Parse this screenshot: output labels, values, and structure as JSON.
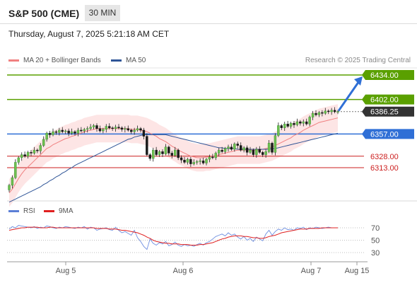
{
  "header": {
    "title": "S&P 500 (CME)",
    "timeframe": "30 MIN",
    "datetime": "Thursday, August 7, 2025 5:21:18 AM CET",
    "credit": "Research © 2025 Trading Central"
  },
  "legend": [
    {
      "label": "MA 20 + Bollinger Bands",
      "color": "#f08080"
    },
    {
      "label": "MA 50",
      "color": "#2f5597"
    }
  ],
  "rsi_legend": [
    {
      "label": "RSI",
      "color": "#5b7fd6"
    },
    {
      "label": "9MA",
      "color": "#e02020"
    }
  ],
  "chart_data": {
    "type": "candlestick",
    "x_ticks": [
      "Aug 5",
      "Aug 6",
      "Aug 7",
      "Aug 15"
    ],
    "price_levels": [
      {
        "value": 6434.0,
        "label": "6434.00",
        "color": "#5aa000",
        "kind": "target"
      },
      {
        "value": 6402.0,
        "label": "6402.00",
        "color": "#5aa000",
        "kind": "resistance"
      },
      {
        "value": 6386.25,
        "label": "6386.25",
        "color": "#333333",
        "kind": "last"
      },
      {
        "value": 6357.0,
        "label": "6357.00",
        "color": "#2f6fd6",
        "kind": "pivot"
      },
      {
        "value": 6328.0,
        "label": "6328.00",
        "color": "#cc1f1f",
        "kind": "support"
      },
      {
        "value": 6313.0,
        "label": "6313.00",
        "color": "#cc1f1f",
        "kind": "support"
      }
    ],
    "close": [
      6290,
      6300,
      6320,
      6326,
      6330,
      6328,
      6333,
      6332,
      6336,
      6335,
      6342,
      6350,
      6358,
      6356,
      6360,
      6359,
      6362,
      6360,
      6361,
      6358,
      6360,
      6358,
      6362,
      6361,
      6363,
      6364,
      6366,
      6368,
      6364,
      6361,
      6363,
      6367,
      6365,
      6364,
      6366,
      6365,
      6363,
      6364,
      6362,
      6360,
      6362,
      6364,
      6362,
      6354,
      6330,
      6325,
      6336,
      6330,
      6334,
      6331,
      6340,
      6332,
      6329,
      6336,
      6326,
      6323,
      6320,
      6324,
      6318,
      6320,
      6321,
      6322,
      6319,
      6324,
      6327,
      6326,
      6332,
      6336,
      6334,
      6338,
      6340,
      6337,
      6344,
      6342,
      6336,
      6339,
      6333,
      6336,
      6330,
      6337,
      6333,
      6330,
      6334,
      6345,
      6333,
      6355,
      6368,
      6365,
      6370,
      6367,
      6371,
      6369,
      6373,
      6371,
      6373,
      6370,
      6379,
      6384,
      6382,
      6385,
      6384,
      6387,
      6386,
      6388,
      6386,
      6386.25
    ],
    "ma20": [
      6280,
      6285,
      6292,
      6299,
      6305,
      6310,
      6314,
      6318,
      6322,
      6326,
      6330,
      6334,
      6338,
      6340,
      6343,
      6345,
      6347,
      6349,
      6351,
      6352,
      6354,
      6355,
      6357,
      6358,
      6360,
      6361,
      6362,
      6363,
      6364,
      6364,
      6364,
      6364,
      6364,
      6364,
      6364,
      6364,
      6364,
      6364,
      6364,
      6363,
      6363,
      6363,
      6362,
      6361,
      6360,
      6358,
      6356,
      6354,
      6351,
      6349,
      6347,
      6344,
      6341,
      6339,
      6336,
      6334,
      6332,
      6330,
      6328,
      6327,
      6326,
      6326,
      6326,
      6327,
      6327,
      6328,
      6329,
      6330,
      6331,
      6332,
      6333,
      6334,
      6335,
      6336,
      6336,
      6336,
      6336,
      6336,
      6336,
      6336,
      6336,
      6337,
      6338,
      6339,
      6340,
      6342,
      6344,
      6346,
      6348,
      6350,
      6352,
      6355,
      6357,
      6359,
      6362,
      6364,
      6366,
      6368,
      6370,
      6372,
      6373,
      6374,
      6375,
      6376,
      6377,
      6378
    ],
    "ma50": [
      6268,
      6270,
      6272,
      6274,
      6276,
      6278,
      6280,
      6282,
      6284,
      6286,
      6288,
      6291,
      6293,
      6296,
      6298,
      6301,
      6303,
      6306,
      6308,
      6311,
      6313,
      6316,
      6318,
      6320,
      6322,
      6324,
      6326,
      6328,
      6330,
      6332,
      6334,
      6336,
      6338,
      6340,
      6342,
      6344,
      6346,
      6348,
      6350,
      6351,
      6353,
      6354,
      6355,
      6356,
      6356,
      6356,
      6356,
      6356,
      6356,
      6356,
      6356,
      6355,
      6354,
      6353,
      6352,
      6351,
      6350,
      6349,
      6348,
      6347,
      6346,
      6345,
      6344,
      6343,
      6342,
      6341,
      6340,
      6339,
      6339,
      6338,
      6338,
      6338,
      6338,
      6337,
      6337,
      6337,
      6337,
      6337,
      6337,
      6337,
      6337,
      6337,
      6337,
      6337,
      6338,
      6338,
      6339,
      6340,
      6341,
      6342,
      6343,
      6344,
      6345,
      6346,
      6347,
      6348,
      6349,
      6350,
      6351,
      6352,
      6353,
      6354,
      6355,
      6356,
      6357,
      6358
    ],
    "bb_width": 18,
    "rsi": [
      68,
      72,
      70,
      74,
      73,
      72,
      71,
      70,
      72,
      69,
      71,
      70,
      73,
      72,
      70,
      69,
      71,
      70,
      72,
      71,
      70,
      69,
      71,
      70,
      72,
      68,
      71,
      70,
      66,
      68,
      69,
      70,
      67,
      66,
      71,
      66,
      62,
      64,
      61,
      58,
      66,
      54,
      48,
      40,
      35,
      52,
      45,
      42,
      46,
      44,
      48,
      41,
      43,
      47,
      42,
      40,
      43,
      41,
      42,
      40,
      43,
      45,
      42,
      46,
      48,
      52,
      56,
      58,
      60,
      57,
      62,
      58,
      60,
      55,
      52,
      56,
      50,
      53,
      48,
      55,
      52,
      49,
      60,
      66,
      58,
      64,
      68,
      66,
      70,
      67,
      68,
      66,
      70,
      69,
      71,
      67,
      70,
      69,
      71,
      70,
      69,
      70,
      71,
      70,
      70,
      70
    ],
    "rsi_ma": [
      66,
      67,
      68,
      69,
      70,
      70,
      71,
      71,
      71,
      71,
      70,
      70,
      70,
      71,
      71,
      70,
      70,
      70,
      70,
      70,
      70,
      70,
      70,
      70,
      70,
      70,
      70,
      70,
      69,
      69,
      69,
      69,
      68,
      68,
      68,
      67,
      66,
      66,
      65,
      64,
      63,
      62,
      60,
      58,
      55,
      53,
      50,
      48,
      47,
      46,
      45,
      45,
      44,
      44,
      44,
      43,
      43,
      43,
      42,
      42,
      42,
      43,
      43,
      44,
      45,
      46,
      48,
      50,
      52,
      53,
      55,
      56,
      57,
      57,
      57,
      56,
      56,
      55,
      54,
      54,
      53,
      53,
      54,
      56,
      57,
      58,
      60,
      62,
      63,
      64,
      65,
      66,
      67,
      68,
      68,
      68,
      69,
      69,
      69,
      69,
      70,
      70,
      70,
      70,
      70,
      70
    ],
    "rsi_levels": [
      70,
      50,
      30
    ],
    "projection": {
      "from": 6386.25,
      "to": 6434.0
    }
  }
}
